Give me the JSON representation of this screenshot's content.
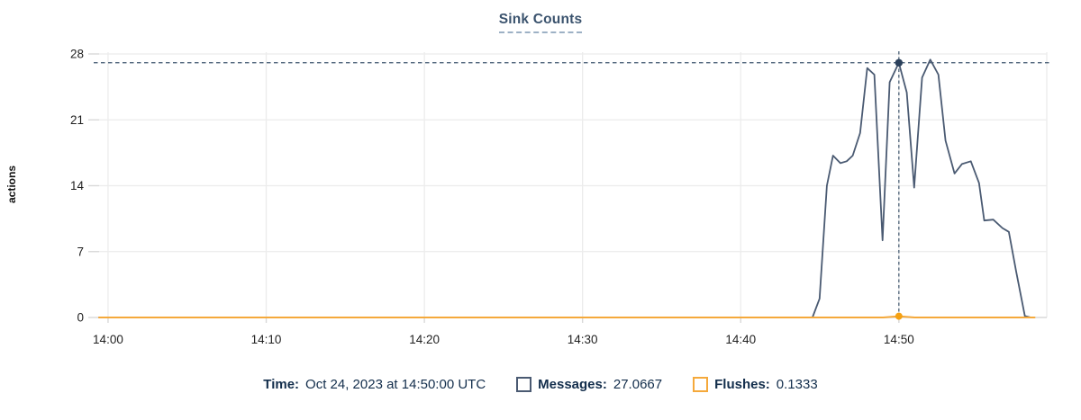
{
  "title": "Sink Counts",
  "footer": {
    "time_label": "Time:",
    "time_value": "Oct 24, 2023 at 14:50:00 UTC",
    "messages_label": "Messages:",
    "messages_value": "27.0667",
    "flushes_label": "Flushes:",
    "flushes_value": "0.1333"
  },
  "colors": {
    "messages": "#4a5a72",
    "flushes": "#f5a93b",
    "crosshair": "#3e566e",
    "marker_messages": "#2c415c",
    "marker_flushes": "#f5a112",
    "grid": "#ececec",
    "axis": "#d8d8d8",
    "tick_text": "#1f1f1f",
    "title_text": "#3b536e"
  },
  "chart_data": {
    "type": "line",
    "title": "Sink Counts",
    "xlabel": "",
    "ylabel": "actions",
    "ylim": [
      0,
      28
    ],
    "y_ticks": [
      0,
      7,
      14,
      21,
      28
    ],
    "xlim_seconds": [
      -34,
      3561
    ],
    "x_ticks": [
      {
        "t": 0,
        "label": "14:00"
      },
      {
        "t": 600,
        "label": "14:10"
      },
      {
        "t": 1200,
        "label": "14:20"
      },
      {
        "t": 1800,
        "label": "14:30"
      },
      {
        "t": 2400,
        "label": "14:40"
      },
      {
        "t": 3000,
        "label": "14:50"
      }
    ],
    "grid": true,
    "legend_position": "bottom",
    "series": [
      {
        "name": "Messages",
        "points": [
          [
            -34,
            0
          ],
          [
            300,
            0
          ],
          [
            600,
            0
          ],
          [
            900,
            0
          ],
          [
            1200,
            0
          ],
          [
            1500,
            0
          ],
          [
            1800,
            0
          ],
          [
            2100,
            0
          ],
          [
            2400,
            0
          ],
          [
            2600,
            0
          ],
          [
            2672,
            0
          ],
          [
            2699,
            2
          ],
          [
            2727,
            14
          ],
          [
            2750,
            17.2
          ],
          [
            2778,
            16.4
          ],
          [
            2802,
            16.6
          ],
          [
            2825,
            17.2
          ],
          [
            2853,
            19.6
          ],
          [
            2880,
            26.5
          ],
          [
            2907,
            25.8
          ],
          [
            2938,
            8.2
          ],
          [
            2965,
            25.0
          ],
          [
            3000,
            27.0667
          ],
          [
            3030,
            23.9
          ],
          [
            3058,
            13.8
          ],
          [
            3088,
            25.5
          ],
          [
            3119,
            27.4
          ],
          [
            3150,
            25.8
          ],
          [
            3177,
            18.8
          ],
          [
            3211,
            15.3
          ],
          [
            3239,
            16.3
          ],
          [
            3273,
            16.6
          ],
          [
            3304,
            14.3
          ],
          [
            3324,
            10.3
          ],
          [
            3358,
            10.4
          ],
          [
            3393,
            9.5
          ],
          [
            3417,
            9.1
          ],
          [
            3444,
            5.0
          ],
          [
            3478,
            0.15
          ],
          [
            3500,
            0
          ]
        ]
      },
      {
        "name": "Flushes",
        "points": [
          [
            -34,
            0
          ],
          [
            600,
            0
          ],
          [
            1200,
            0
          ],
          [
            1800,
            0
          ],
          [
            2400,
            0
          ],
          [
            2940,
            0
          ],
          [
            3000,
            0.1333
          ],
          [
            3060,
            0
          ],
          [
            3515,
            0
          ]
        ]
      }
    ],
    "hover": {
      "t": 3000,
      "time_label": "Oct 24, 2023 at 14:50:00 UTC",
      "messages_value": 27.0667,
      "flushes_value": 0.1333
    }
  }
}
